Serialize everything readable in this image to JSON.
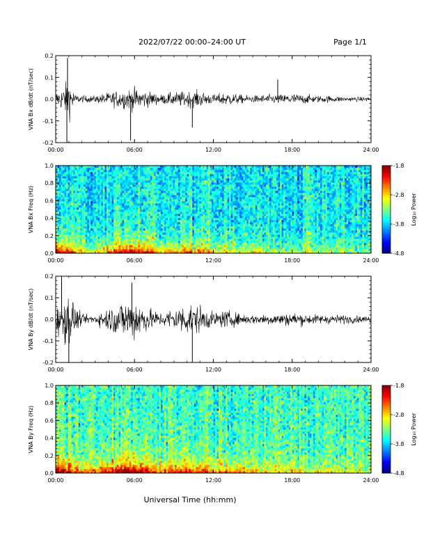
{
  "header": {
    "title": "2022/07/22  00:00–24:00 UT",
    "page": "Page 1/1"
  },
  "xlabel": "Universal Time (hh:mm)",
  "chart_data": [
    {
      "type": "line",
      "ylabel": "VNA Bx dB/dt (nT/sec)",
      "ylim": [
        -0.2,
        0.2
      ],
      "yticks": [
        "0.2",
        "0.1",
        "0.0",
        "-0.1",
        "-0.2"
      ],
      "xticks": [
        "00:00",
        "06:00",
        "12:00",
        "18:00",
        "24:00"
      ],
      "xlim_hours": [
        0,
        24
      ],
      "envelope": {
        "hours": [
          0,
          0.5,
          1.0,
          1.5,
          2.0,
          3.0,
          4.0,
          5.0,
          6.0,
          7.0,
          8.0,
          9.0,
          10.0,
          11.0,
          12.0,
          13.0,
          14.0,
          15.0,
          16.0,
          17.0,
          18.0,
          19.0,
          20.0,
          21.0,
          22.0,
          23.0,
          24.0
        ],
        "amplitude": [
          0.03,
          0.05,
          0.09,
          0.02,
          0.015,
          0.015,
          0.03,
          0.04,
          0.05,
          0.035,
          0.02,
          0.03,
          0.035,
          0.035,
          0.02,
          0.03,
          0.02,
          0.015,
          0.02,
          0.02,
          0.025,
          0.02,
          0.015,
          0.015,
          0.01,
          0.01,
          0.01
        ]
      },
      "spikes": [
        {
          "hour": 0.9,
          "value": 0.19
        },
        {
          "hour": 0.85,
          "value": -0.21
        },
        {
          "hour": 5.7,
          "value": -0.19
        },
        {
          "hour": 10.4,
          "value": -0.13
        },
        {
          "hour": 16.9,
          "value": 0.09
        }
      ]
    },
    {
      "type": "heatmap",
      "ylabel": "VNA Bx Freq (Hz)",
      "ylim": [
        0,
        1.0
      ],
      "yticks": [
        "1.0",
        "0.8",
        "0.6",
        "0.4",
        "0.2",
        "0.0"
      ],
      "xticks": [
        "00:00",
        "06:00",
        "12:00",
        "18:00",
        "24:00"
      ],
      "colorbar": {
        "label": "Log₁₀ Power",
        "ticks": [
          "-1.8",
          "-2.8",
          "-3.8",
          "-4.8"
        ],
        "range": [
          -4.8,
          -1.8
        ]
      },
      "background_log_power": -3.7,
      "low_freq_activity": {
        "hours": [
          0,
          1,
          2,
          3,
          4,
          5,
          6,
          7,
          8,
          9,
          10,
          11,
          12,
          13,
          14,
          15,
          16,
          17,
          18,
          19,
          20,
          21,
          22,
          23,
          24
        ],
        "log_power": [
          -2.0,
          -2.2,
          -2.9,
          -3.0,
          -2.6,
          -2.2,
          -1.9,
          -2.4,
          -2.8,
          -2.7,
          -2.5,
          -2.6,
          -2.8,
          -2.9,
          -3.0,
          -3.0,
          -3.0,
          -3.1,
          -3.1,
          -3.1,
          -3.2,
          -3.2,
          -3.2,
          -3.3,
          -3.3
        ]
      }
    },
    {
      "type": "line",
      "ylabel": "VNA By dB/dt (nT/sec)",
      "ylim": [
        -0.2,
        0.2
      ],
      "yticks": [
        "0.2",
        "0.1",
        "0.0",
        "-0.1",
        "-0.2"
      ],
      "xticks": [
        "00:00",
        "06:00",
        "12:00",
        "18:00",
        "24:00"
      ],
      "xlim_hours": [
        0,
        24
      ],
      "envelope": {
        "hours": [
          0,
          0.5,
          1.0,
          1.5,
          2.0,
          3.0,
          4.0,
          5.0,
          6.0,
          7.0,
          8.0,
          9.0,
          10.0,
          11.0,
          12.0,
          13.0,
          14.0,
          15.0,
          16.0,
          17.0,
          18.0,
          19.0,
          20.0,
          21.0,
          22.0,
          23.0,
          24.0
        ],
        "amplitude": [
          0.06,
          0.09,
          0.12,
          0.06,
          0.02,
          0.02,
          0.05,
          0.08,
          0.1,
          0.05,
          0.03,
          0.05,
          0.07,
          0.06,
          0.03,
          0.04,
          0.025,
          0.02,
          0.025,
          0.025,
          0.03,
          0.025,
          0.02,
          0.02,
          0.02,
          0.015,
          0.015
        ]
      },
      "spikes": [
        {
          "hour": 0.45,
          "value": 0.2
        },
        {
          "hour": 1.0,
          "value": -0.2
        },
        {
          "hour": 5.8,
          "value": 0.17
        },
        {
          "hour": 10.4,
          "value": -0.2
        }
      ]
    },
    {
      "type": "heatmap",
      "ylabel": "VNA By Freq (Hz)",
      "ylim": [
        0,
        1.0
      ],
      "yticks": [
        "1.0",
        "0.8",
        "0.6",
        "0.4",
        "0.2",
        "0.0"
      ],
      "xticks": [
        "00:00",
        "06:00",
        "12:00",
        "18:00",
        "24:00"
      ],
      "colorbar": {
        "label": "Log₁₀ Power",
        "ticks": [
          "-1.8",
          "-2.8",
          "-3.8",
          "-4.8"
        ],
        "range": [
          -4.8,
          -1.8
        ]
      },
      "background_log_power": -3.5,
      "low_freq_activity": {
        "hours": [
          0,
          1,
          2,
          3,
          4,
          5,
          6,
          7,
          8,
          9,
          10,
          11,
          12,
          13,
          14,
          15,
          16,
          17,
          18,
          19,
          20,
          21,
          22,
          23,
          24
        ],
        "log_power": [
          -1.9,
          -2.0,
          -2.6,
          -2.6,
          -2.2,
          -1.9,
          -1.8,
          -2.1,
          -2.4,
          -2.3,
          -2.2,
          -2.3,
          -2.5,
          -2.6,
          -2.7,
          -2.8,
          -2.8,
          -2.9,
          -2.9,
          -2.9,
          -3.0,
          -3.0,
          -3.0,
          -3.1,
          -3.1
        ]
      }
    }
  ]
}
